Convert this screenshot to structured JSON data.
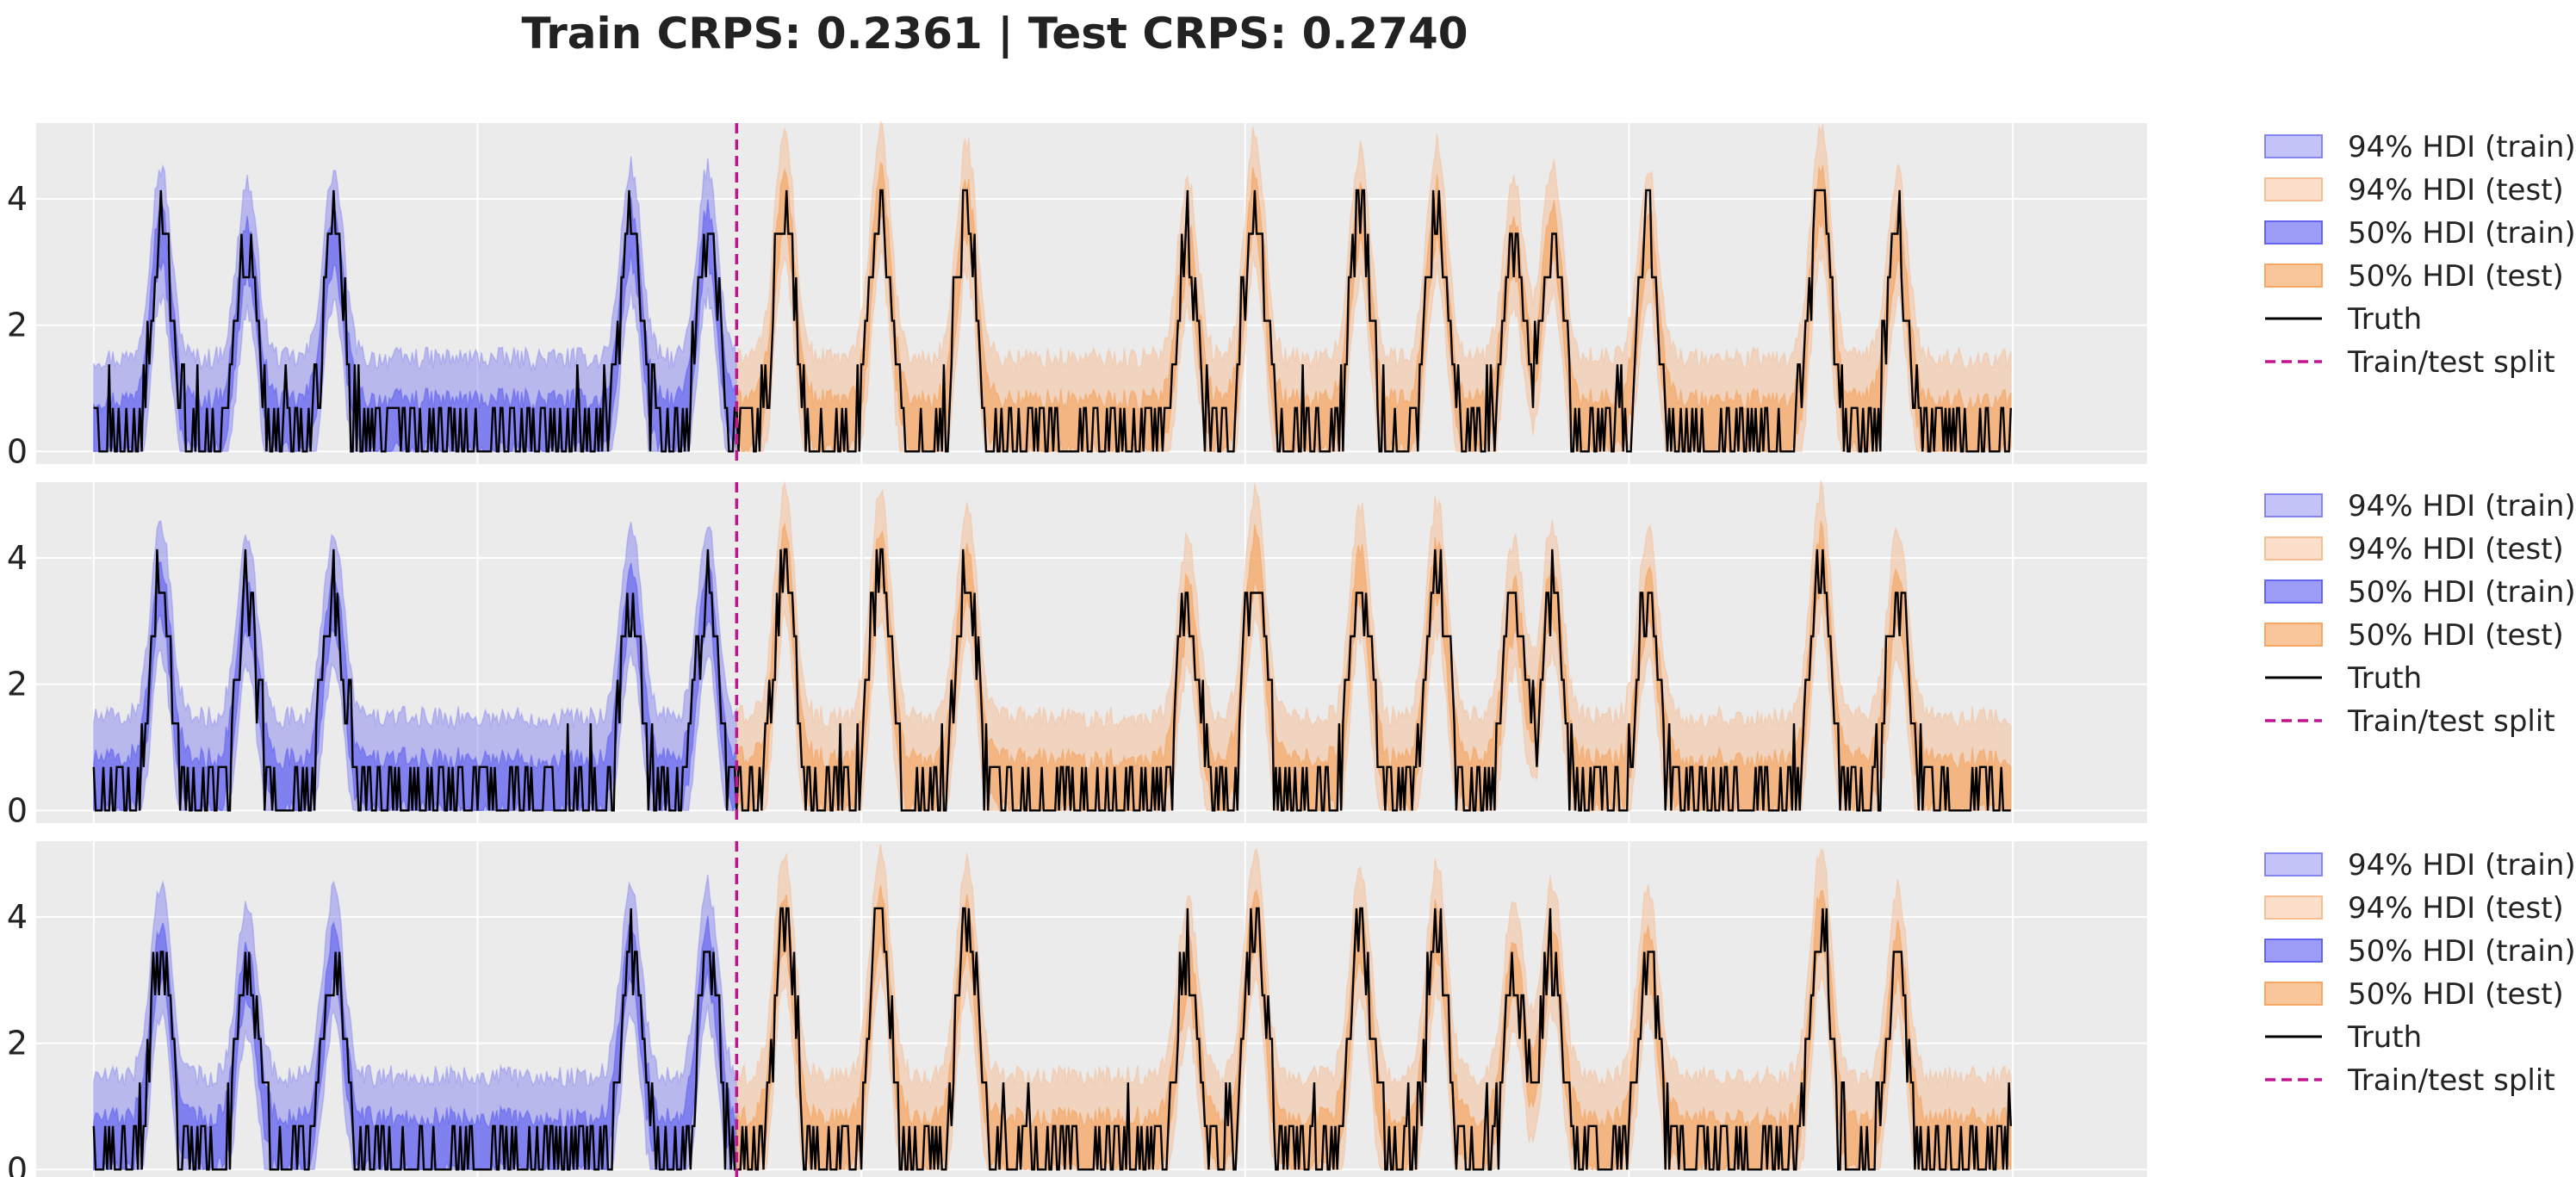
{
  "figure": {
    "title": "Train CRPS: 0.2361 | Test CRPS: 0.2740"
  },
  "legend": {
    "entries": [
      {
        "label": "94% HDI (train)",
        "kind": "patch",
        "color": "#7b7bf0",
        "alpha": 0.45
      },
      {
        "label": "94% HDI (test)",
        "kind": "patch",
        "color": "#f6b88a",
        "alpha": 0.45
      },
      {
        "label": "50% HDI (train)",
        "kind": "patch",
        "color": "#5a5af0",
        "alpha": 0.6
      },
      {
        "label": "50% HDI (test)",
        "kind": "patch",
        "color": "#f5a05a",
        "alpha": 0.6
      },
      {
        "label": "Truth",
        "kind": "line",
        "color": "#000000"
      },
      {
        "label": "Train/test split",
        "kind": "dashed",
        "color": "#c2158d"
      }
    ]
  },
  "colors": {
    "panel_bg": "#ebebeb",
    "grid": "#ffffff",
    "train_94": "#7b7bf0",
    "test_94": "#f6b88a",
    "train_50": "#5a5af0",
    "test_50": "#f5a05a",
    "truth": "#000000",
    "split": "#c2158d"
  },
  "chart_data": [
    {
      "type": "area",
      "panel": 1,
      "title": "",
      "xlabel": "",
      "ylabel": "",
      "ylim": [
        -0.2,
        5.2
      ],
      "yticks": [
        0,
        2,
        4
      ],
      "xlim": [
        -30,
        1070
      ],
      "split_x": 335,
      "n_points": 1000,
      "grid": true,
      "legend_position": "right",
      "peak_positions": [
        35,
        80,
        125,
        280,
        320,
        360,
        410,
        455,
        570,
        605,
        660,
        700,
        740,
        760,
        810,
        900,
        940
      ],
      "series": [
        {
          "name": "94% HDI (train)",
          "x_range": [
            0,
            335
          ]
        },
        {
          "name": "94% HDI (test)",
          "x_range": [
            335,
            999
          ]
        },
        {
          "name": "50% HDI (train)",
          "x_range": [
            0,
            335
          ]
        },
        {
          "name": "50% HDI (test)",
          "x_range": [
            335,
            999
          ]
        },
        {
          "name": "Truth",
          "x_range": [
            0,
            999
          ]
        }
      ]
    },
    {
      "type": "area",
      "panel": 2,
      "title": "",
      "xlabel": "",
      "ylabel": "",
      "ylim": [
        -0.2,
        5.2
      ],
      "yticks": [
        0,
        2,
        4
      ],
      "xlim": [
        -30,
        1070
      ],
      "split_x": 335,
      "n_points": 1000,
      "grid": true,
      "legend_position": "right",
      "peak_positions": [
        35,
        80,
        125,
        280,
        320,
        360,
        410,
        455,
        570,
        605,
        660,
        700,
        740,
        760,
        810,
        900,
        940
      ],
      "series": [
        {
          "name": "94% HDI (train)",
          "x_range": [
            0,
            335
          ]
        },
        {
          "name": "94% HDI (test)",
          "x_range": [
            335,
            999
          ]
        },
        {
          "name": "50% HDI (train)",
          "x_range": [
            0,
            335
          ]
        },
        {
          "name": "50% HDI (test)",
          "x_range": [
            335,
            999
          ]
        },
        {
          "name": "Truth",
          "x_range": [
            0,
            999
          ]
        }
      ]
    },
    {
      "type": "area",
      "panel": 3,
      "title": "",
      "xlabel": "",
      "ylabel": "",
      "ylim": [
        -0.2,
        5.2
      ],
      "yticks": [
        0,
        2,
        4
      ],
      "xlim": [
        -30,
        1070
      ],
      "split_x": 335,
      "n_points": 1000,
      "grid": true,
      "legend_position": "right",
      "peak_positions": [
        35,
        80,
        125,
        280,
        320,
        360,
        410,
        455,
        570,
        605,
        660,
        700,
        740,
        760,
        810,
        900,
        940
      ],
      "series": [
        {
          "name": "94% HDI (train)",
          "x_range": [
            0,
            335
          ]
        },
        {
          "name": "94% HDI (test)",
          "x_range": [
            335,
            999
          ]
        },
        {
          "name": "50% HDI (train)",
          "x_range": [
            0,
            335
          ]
        },
        {
          "name": "50% HDI (test)",
          "x_range": [
            335,
            999
          ]
        },
        {
          "name": "Truth",
          "x_range": [
            0,
            999
          ]
        }
      ]
    }
  ]
}
